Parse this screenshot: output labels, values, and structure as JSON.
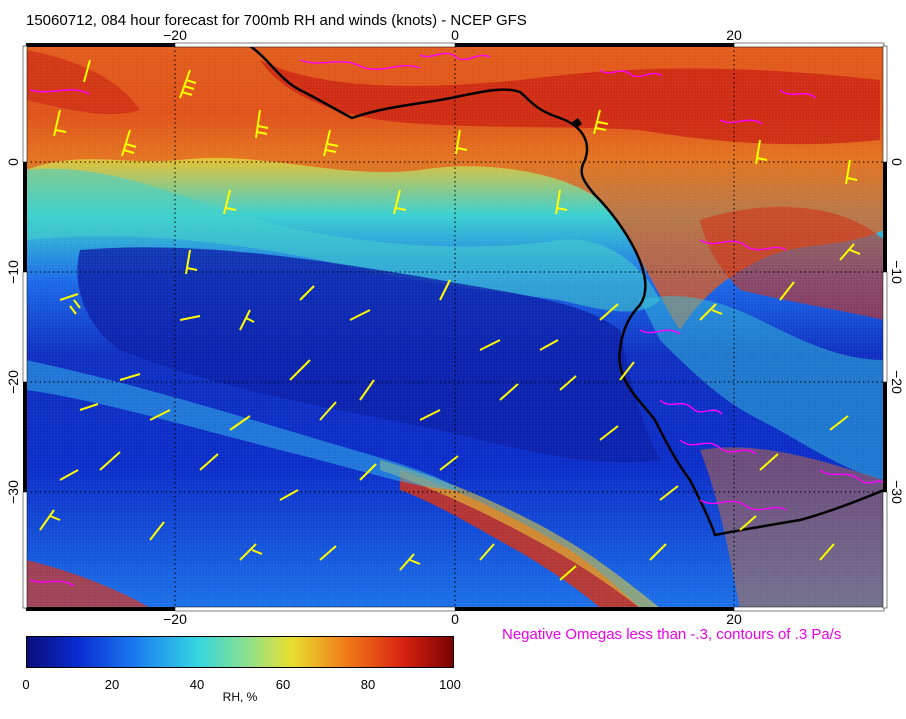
{
  "title": "15060712, 084 hour forecast for 700mb RH and winds (knots) - NCEP GFS",
  "note": "Negative Omegas less than -.3, contours of .3 Pa/s",
  "colorbar": {
    "label": "RH, %",
    "ticks": [
      "0",
      "20",
      "40",
      "60",
      "80",
      "100"
    ]
  },
  "axes": {
    "lon_ticks_top": [
      "−20",
      "0",
      "20"
    ],
    "lon_ticks_bottom": [
      "−20",
      "0",
      "20"
    ],
    "lat_ticks_left": [
      "0",
      "−10",
      "−20",
      "−30"
    ],
    "lat_ticks_right": [
      "0",
      "−10",
      "−20",
      "−30"
    ]
  },
  "colors": {
    "rh_ramp": [
      "#0b0e7a",
      "#0a2bd0",
      "#1a78f0",
      "#34d6e0",
      "#8ee08a",
      "#e8e030",
      "#f07a18",
      "#d82412",
      "#7a0000"
    ],
    "wind_barbs": "#ffff00",
    "omega_contours": "#ff00ff",
    "coastline": "#000000",
    "graticule": "#000000"
  }
}
